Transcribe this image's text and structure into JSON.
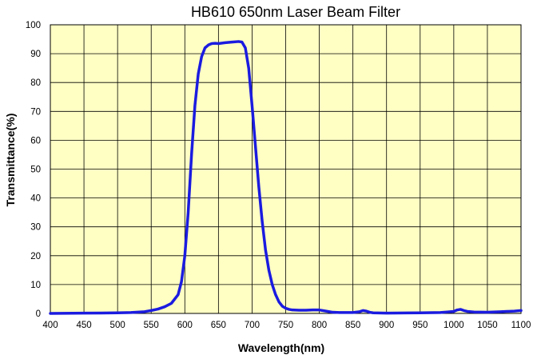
{
  "chart_data": {
    "type": "line",
    "title": "HB610 650nm Laser Beam Filter",
    "xlabel": "Wavelength(nm)",
    "ylabel": "Transmittance(%)",
    "xlim": [
      400,
      1100
    ],
    "ylim": [
      0,
      100
    ],
    "xticks": [
      400,
      450,
      500,
      550,
      600,
      650,
      700,
      750,
      800,
      850,
      900,
      950,
      1000,
      1050,
      1100
    ],
    "yticks": [
      0,
      10,
      20,
      30,
      40,
      50,
      60,
      70,
      80,
      90,
      100
    ],
    "grid": true,
    "legend": "none",
    "colors": {
      "background": "#FFFFC4",
      "line": "#1B1BE0",
      "grid": "#000000"
    },
    "series": [
      {
        "x": [
          400,
          450,
          500,
          520,
          540,
          550,
          560,
          570,
          580,
          590,
          595,
          600,
          605,
          610,
          615,
          620,
          625,
          630,
          635,
          640,
          645,
          650,
          660,
          670,
          680,
          685,
          690,
          695,
          700,
          705,
          710,
          715,
          720,
          725,
          730,
          735,
          740,
          745,
          750,
          755,
          760,
          770,
          780,
          790,
          800,
          810,
          820,
          830,
          840,
          850,
          860,
          865,
          870,
          875,
          880,
          900,
          950,
          980,
          990,
          1000,
          1005,
          1010,
          1015,
          1020,
          1030,
          1050,
          1070,
          1090,
          1100
        ],
        "values": [
          0.0,
          0.1,
          0.2,
          0.3,
          0.6,
          1.0,
          1.5,
          2.3,
          3.5,
          6.5,
          11,
          20,
          35,
          55,
          72,
          83,
          89,
          92,
          93,
          93.5,
          93.6,
          93.5,
          93.8,
          94,
          94.2,
          94,
          92,
          85,
          72,
          58,
          44,
          32,
          22,
          15,
          10,
          6.5,
          4,
          2.5,
          1.8,
          1.4,
          1.2,
          1.1,
          1.1,
          1.2,
          1.2,
          0.8,
          0.4,
          0.3,
          0.3,
          0.3,
          0.6,
          1.0,
          0.8,
          0.4,
          0.2,
          0.1,
          0.2,
          0.3,
          0.5,
          0.7,
          1.2,
          1.4,
          1.0,
          0.7,
          0.5,
          0.4,
          0.6,
          0.8,
          1.0
        ]
      }
    ]
  }
}
